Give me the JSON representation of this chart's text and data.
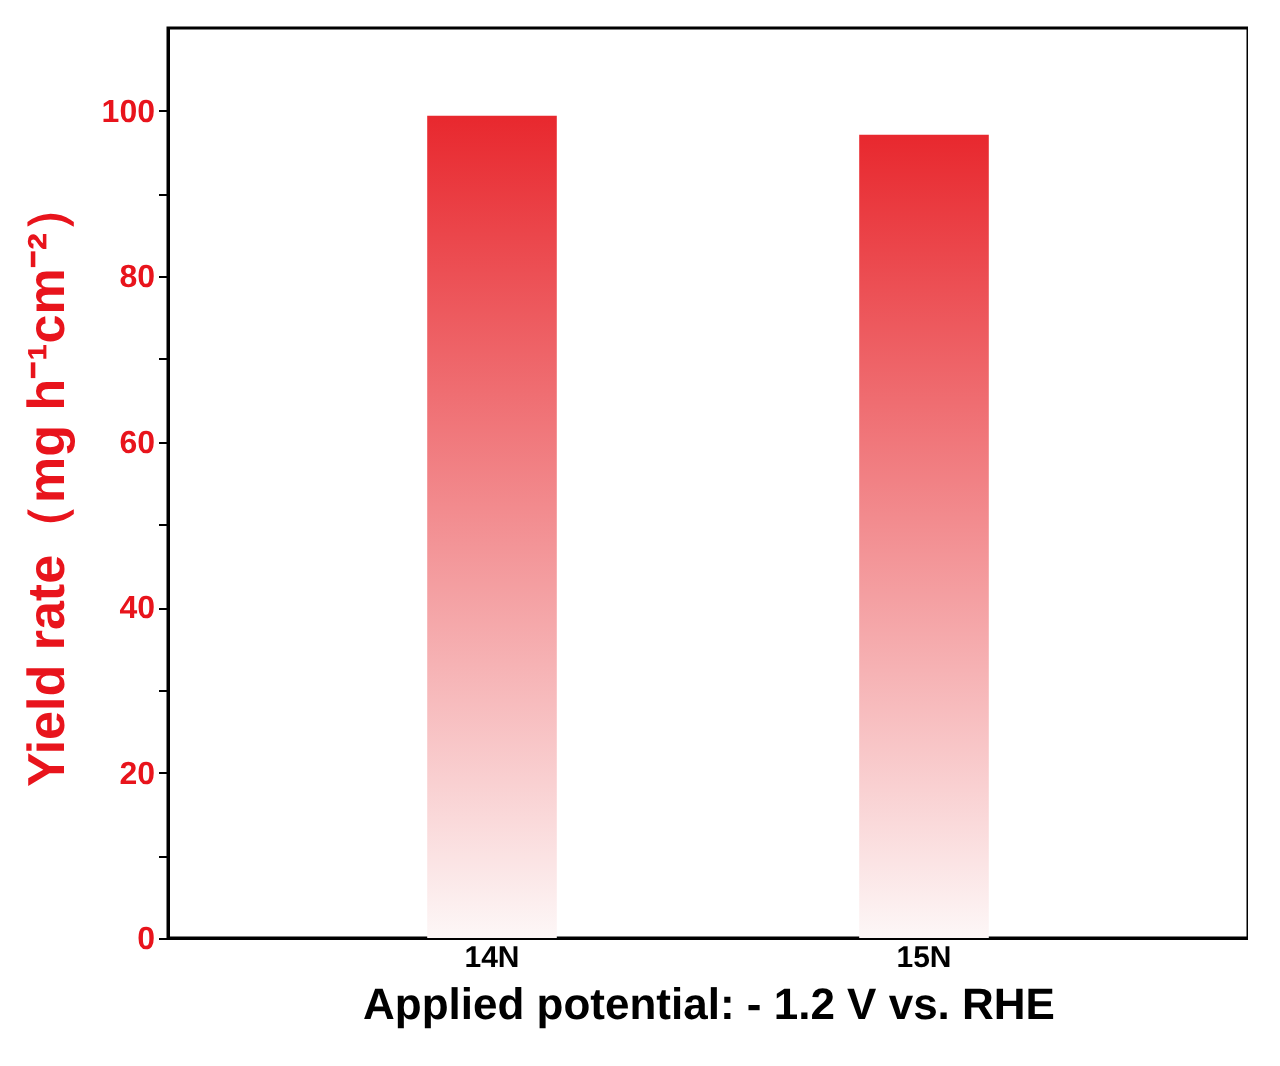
{
  "chart_data": {
    "type": "bar",
    "xlabel": "Applied potential:  - 1.2 V vs. RHE",
    "ylabel": "Yield rate（mg h⁻¹cm⁻²）",
    "categories": [
      "14N",
      "15N"
    ],
    "series": [
      {
        "color": "#e8282e",
        "values": [
          99.4,
          97.1
        ]
      }
    ],
    "ylim": [
      0,
      110
    ],
    "yticks": [
      0,
      {
        "value": 10,
        "label": null
      },
      20,
      {
        "value": 30,
        "label": null
      },
      40,
      {
        "value": 50,
        "label": null
      },
      60,
      {
        "value": 70,
        "label": null
      },
      80,
      {
        "value": 90,
        "label": null
      },
      100
    ],
    "grid": false
  }
}
